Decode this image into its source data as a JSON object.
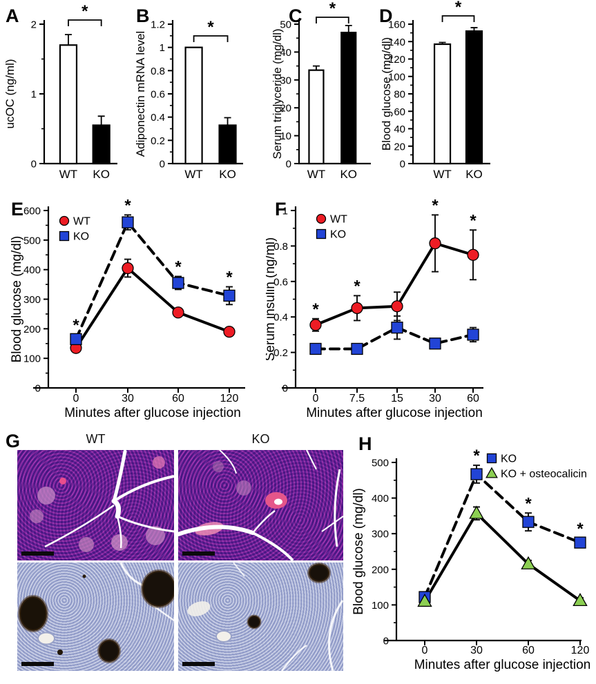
{
  "figure_background": "#ffffff",
  "colors": {
    "wt_marker_red": "#ed1c24",
    "ko_marker_blue": "#2244d6",
    "osteocalicin_marker_green": "#8ccf52",
    "bar_white": "#ffffff",
    "bar_black": "#000000",
    "axis_black": "#000000"
  },
  "panel_g": {
    "label": "G",
    "column_labels": [
      "WT",
      "KO"
    ],
    "images": [
      {
        "name": "micrograph-top-left",
        "column": "WT",
        "scale_bar": true
      },
      {
        "name": "micrograph-top-right",
        "column": "KO",
        "scale_bar": true
      },
      {
        "name": "micrograph-bottom-left",
        "column": "WT",
        "scale_bar": true
      },
      {
        "name": "micrograph-bottom-right",
        "column": "KO",
        "scale_bar": true
      }
    ]
  },
  "chart_data": [
    {
      "panel": "A",
      "type": "bar",
      "categories": [
        "WT",
        "KO"
      ],
      "values": [
        1.7,
        0.55
      ],
      "errors": [
        0.15,
        0.13
      ],
      "bar_fills": [
        "#ffffff",
        "#000000"
      ],
      "ylabel": "ucOC (ng/ml)",
      "ylim": [
        0,
        2
      ],
      "yticks": [
        0,
        1,
        2
      ],
      "significance": {
        "symbol": "*",
        "between": [
          "WT",
          "KO"
        ]
      }
    },
    {
      "panel": "B",
      "type": "bar",
      "categories": [
        "WT",
        "KO"
      ],
      "values": [
        1.0,
        0.33
      ],
      "errors": [
        0,
        0.065
      ],
      "bar_fills": [
        "#ffffff",
        "#000000"
      ],
      "ylabel": "Adiponectin mRNA level",
      "ylim": [
        0,
        1.2
      ],
      "yticks": [
        0,
        0.2,
        0.4,
        0.6,
        0.8,
        1,
        1.2
      ],
      "significance": {
        "symbol": "*",
        "between": [
          "WT",
          "KO"
        ]
      }
    },
    {
      "panel": "C",
      "type": "bar",
      "categories": [
        "WT",
        "KO"
      ],
      "values": [
        33.5,
        47
      ],
      "errors": [
        1.5,
        2.5
      ],
      "bar_fills": [
        "#ffffff",
        "#000000"
      ],
      "ylabel": "Serum triglyceride (mg/dl)",
      "ylim": [
        0,
        50
      ],
      "yticks": [
        0,
        10,
        20,
        30,
        40,
        50
      ],
      "significance": {
        "symbol": "*",
        "between": [
          "WT",
          "KO"
        ]
      }
    },
    {
      "panel": "D",
      "type": "bar",
      "categories": [
        "WT",
        "KO"
      ],
      "values": [
        137,
        152
      ],
      "errors": [
        2,
        4
      ],
      "bar_fills": [
        "#ffffff",
        "#000000"
      ],
      "ylabel": "Blood glucose (mg/dl)",
      "ylim": [
        0,
        160
      ],
      "yticks": [
        0,
        20,
        40,
        60,
        80,
        100,
        120,
        140,
        160
      ],
      "significance": {
        "symbol": "*",
        "between": [
          "WT",
          "KO"
        ]
      }
    },
    {
      "panel": "E",
      "type": "line",
      "xlabel": "Minutes after glucose injection",
      "ylabel": "Blood glucose (mg/dl)",
      "ylim": [
        0,
        600
      ],
      "yticks": [
        0,
        100,
        200,
        300,
        400,
        500,
        600
      ],
      "x": [
        0,
        30,
        60,
        120
      ],
      "x_tick_labels": [
        "0",
        "30",
        "60",
        "120"
      ],
      "x_scale": "evenly-spaced-categories",
      "series": [
        {
          "name": "WT",
          "marker": "circle",
          "color": "#ed1c24",
          "line_style": "solid",
          "values": [
            135,
            405,
            255,
            190
          ],
          "errors": [
            10,
            30,
            12,
            10
          ]
        },
        {
          "name": "KO",
          "marker": "square",
          "color": "#2244d6",
          "line_style": "dashed",
          "values": [
            165,
            560,
            355,
            312
          ],
          "errors": [
            15,
            25,
            22,
            30
          ]
        }
      ],
      "significance": {
        "symbol": "*",
        "series": "KO",
        "x_indices": [
          0,
          1,
          2,
          3
        ]
      },
      "legend_position": "top-left"
    },
    {
      "panel": "F",
      "type": "line",
      "xlabel": "Minutes after glucose injection",
      "ylabel": "Serum insulin (ng/ml)",
      "ylim": [
        0,
        1
      ],
      "yticks": [
        0,
        0.2,
        0.4,
        0.6,
        0.8,
        1
      ],
      "x": [
        0,
        7.5,
        15,
        30,
        60
      ],
      "x_tick_labels": [
        "0",
        "7.5",
        "15",
        "30",
        "60"
      ],
      "x_scale": "evenly-spaced-categories",
      "series": [
        {
          "name": "WT",
          "marker": "circle",
          "color": "#ed1c24",
          "line_style": "solid",
          "values": [
            0.355,
            0.45,
            0.46,
            0.815,
            0.75
          ],
          "errors": [
            0.035,
            0.07,
            0.08,
            0.16,
            0.14
          ]
        },
        {
          "name": "KO",
          "marker": "square",
          "color": "#2244d6",
          "line_style": "dashed",
          "values": [
            0.22,
            0.22,
            0.34,
            0.25,
            0.3
          ],
          "errors": [
            0.02,
            0.025,
            0.065,
            0.025,
            0.04
          ]
        }
      ],
      "significance": {
        "symbol": "*",
        "series": "WT",
        "x_indices": [
          0,
          1,
          3,
          4
        ]
      },
      "legend_position": "top-left"
    },
    {
      "panel": "H",
      "type": "line",
      "xlabel": "Minutes after glucose injection",
      "ylabel": "Blood glucose (mg/dl)",
      "ylim": [
        0,
        500
      ],
      "yticks": [
        0,
        100,
        200,
        300,
        400,
        500
      ],
      "x": [
        0,
        30,
        60,
        120
      ],
      "x_tick_labels": [
        "0",
        "30",
        "60",
        "120"
      ],
      "x_scale": "evenly-spaced-categories",
      "series": [
        {
          "name": "KO",
          "marker": "square",
          "color": "#2244d6",
          "line_style": "dashed",
          "values": [
            122,
            467,
            333,
            275
          ],
          "errors": [
            8,
            25,
            25,
            12
          ]
        },
        {
          "name": "KO + osteocalicin",
          "marker": "triangle",
          "color": "#8ccf52",
          "line_style": "solid",
          "values": [
            110,
            357,
            215,
            112
          ],
          "errors": [
            5,
            18,
            10,
            8
          ]
        }
      ],
      "significance": {
        "symbol": "*",
        "series": "KO",
        "x_indices": [
          1,
          2,
          3
        ]
      },
      "legend_position": "top-right"
    }
  ]
}
